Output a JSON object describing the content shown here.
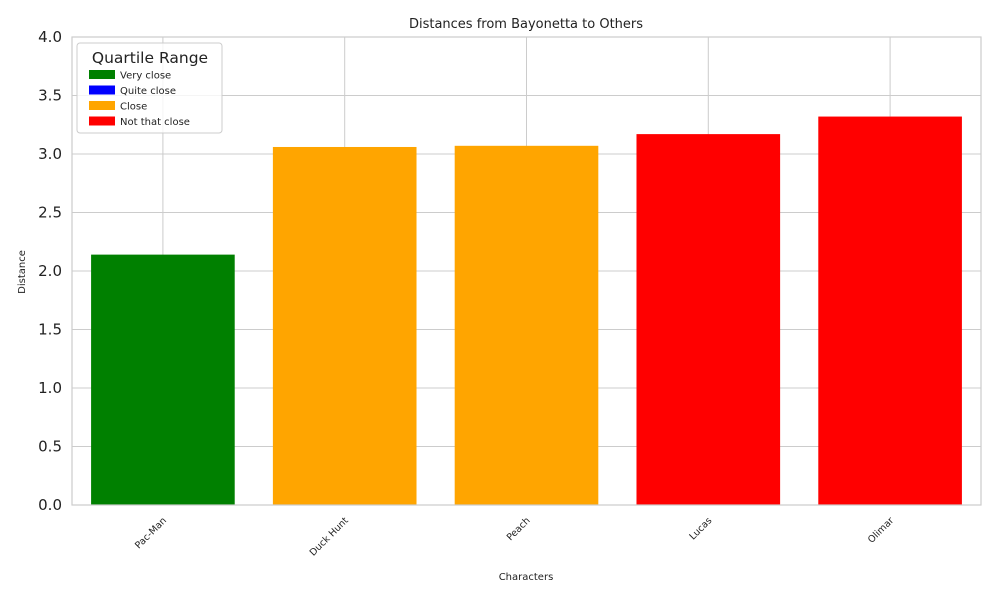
{
  "chart_data": {
    "type": "bar",
    "title": "Distances from Bayonetta to Others",
    "xlabel": "Characters",
    "ylabel": "Distance",
    "ylim": [
      0,
      4
    ],
    "yticks": [
      0.0,
      0.5,
      1.0,
      1.5,
      2.0,
      2.5,
      3.0,
      3.5,
      4.0
    ],
    "ytick_labels": [
      "0.0",
      "0.5",
      "1.0",
      "1.5",
      "2.0",
      "2.5",
      "3.0",
      "3.5",
      "4.0"
    ],
    "categories": [
      "Pac-Man",
      "Duck Hunt",
      "Peach",
      "Lucas",
      "Olimar"
    ],
    "values": [
      2.14,
      3.06,
      3.07,
      3.17,
      3.32
    ],
    "bar_groups": [
      "Very close",
      "Close",
      "Close",
      "Not that close",
      "Not that close"
    ],
    "grid": true,
    "legend": {
      "title": "Quartile Range",
      "placement": "top-left",
      "entries": [
        {
          "label": "Very close",
          "color": "#008000"
        },
        {
          "label": "Quite close",
          "color": "#0000ff"
        },
        {
          "label": "Close",
          "color": "#ffa500"
        },
        {
          "label": "Not that close",
          "color": "#ff0000"
        }
      ]
    }
  }
}
